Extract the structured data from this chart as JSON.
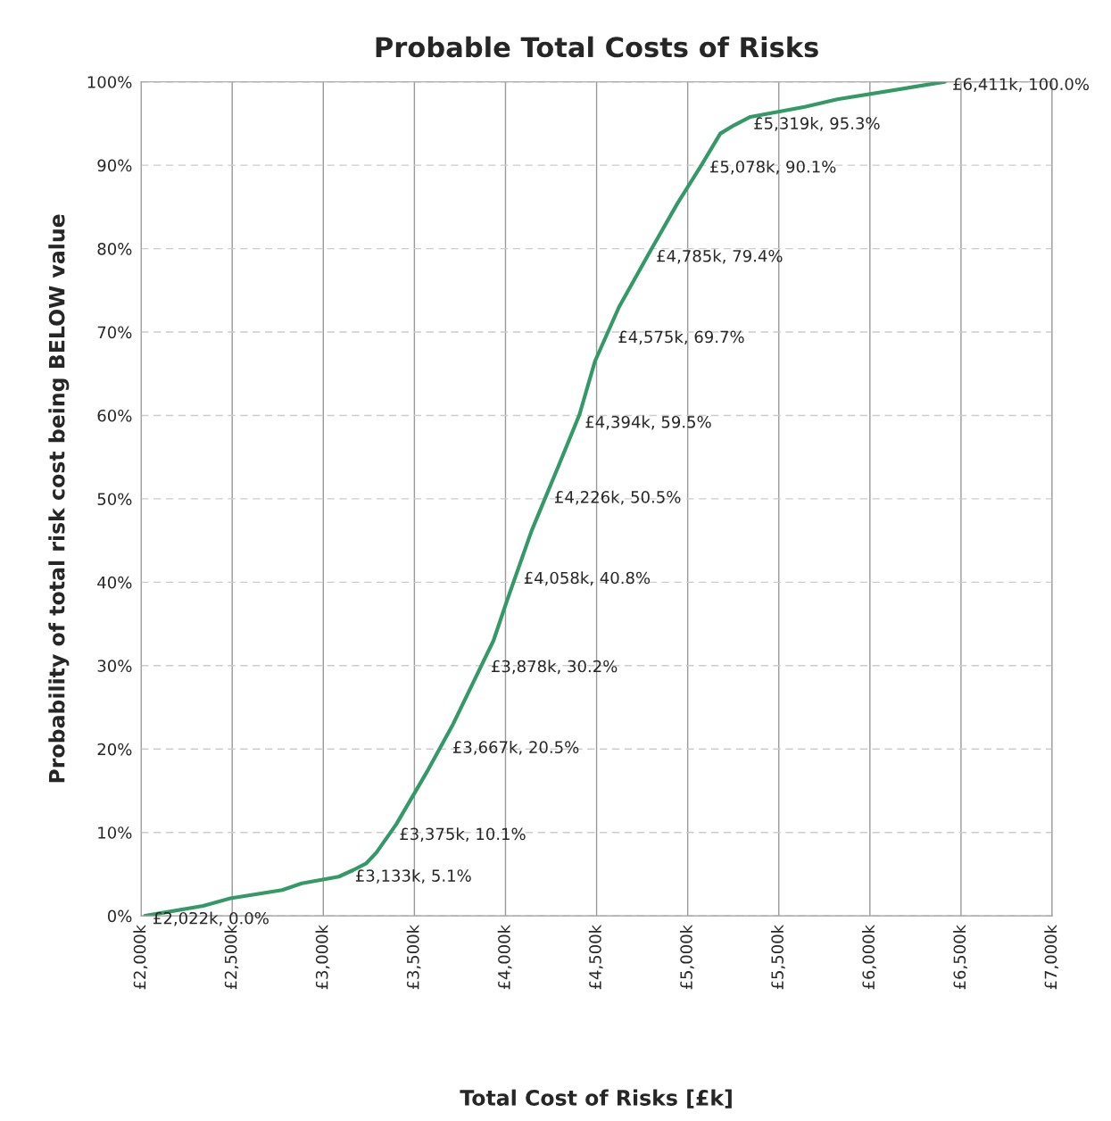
{
  "chart_data": {
    "type": "line",
    "title": "Probable Total Costs of Risks",
    "xlabel": "Total Cost of Risks [£k]",
    "ylabel": "Probability of total risk cost being BELOW value",
    "series": [
      {
        "color": "#339966",
        "x": [
          2022,
          2340,
          2490,
          2774,
          2882,
          3085,
          3165,
          3236,
          3292,
          3401,
          3575,
          3708,
          3830,
          3934,
          4005,
          4142,
          4292,
          4406,
          4491,
          4623,
          4792,
          4943,
          5075,
          5179,
          5255,
          5344,
          5642,
          5821,
          6411
        ],
        "values": [
          0,
          1.2,
          2.1,
          3.1,
          3.9,
          4.7,
          5.5,
          6.3,
          7.6,
          11.0,
          17.5,
          22.8,
          28.3,
          33,
          37.6,
          46.1,
          54,
          60.1,
          66.5,
          73,
          79.6,
          85.4,
          90,
          93.8,
          94.8,
          95.8,
          97,
          97.9,
          100
        ]
      }
    ],
    "annotations": [
      {
        "text": "£2,022k, 0.0%",
        "x": 2022,
        "y": 0
      },
      {
        "text": "£3,133k, 5.1%",
        "x": 3133,
        "y": 5.1
      },
      {
        "text": "£3,375k, 10.1%",
        "x": 3375,
        "y": 10.1
      },
      {
        "text": "£3,667k, 20.5%",
        "x": 3667,
        "y": 20.5
      },
      {
        "text": "£3,878k, 30.2%",
        "x": 3878,
        "y": 30.2
      },
      {
        "text": "£4,058k, 40.8%",
        "x": 4058,
        "y": 40.8
      },
      {
        "text": "£4,226k, 50.5%",
        "x": 4226,
        "y": 50.5
      },
      {
        "text": "£4,394k, 59.5%",
        "x": 4394,
        "y": 59.5
      },
      {
        "text": "£4,575k, 69.7%",
        "x": 4575,
        "y": 69.7
      },
      {
        "text": "£4,785k, 79.4%",
        "x": 4785,
        "y": 79.4
      },
      {
        "text": "£5,078k, 90.1%",
        "x": 5078,
        "y": 90.1
      },
      {
        "text": "£5,319k, 95.3%",
        "x": 5319,
        "y": 95.3
      },
      {
        "text": "£6,411k, 100.0%",
        "x": 6411,
        "y": 100
      }
    ],
    "xlim": [
      2000,
      7000
    ],
    "xticks": [
      {
        "value": 2000,
        "label": "£2,000k"
      },
      {
        "value": 2500,
        "label": "£2,500k"
      },
      {
        "value": 3000,
        "label": "£3,000k"
      },
      {
        "value": 3500,
        "label": "£3,500k"
      },
      {
        "value": 4000,
        "label": "£4,000k"
      },
      {
        "value": 4500,
        "label": "£4,500k"
      },
      {
        "value": 5000,
        "label": "£5,000k"
      },
      {
        "value": 5500,
        "label": "£5,500k"
      },
      {
        "value": 6000,
        "label": "£6,000k"
      },
      {
        "value": 6500,
        "label": "£6,500k"
      },
      {
        "value": 7000,
        "label": "£7,000k"
      }
    ],
    "ylim": [
      0,
      100
    ],
    "yticks": [
      {
        "value": 0,
        "label": "0%"
      },
      {
        "value": 10,
        "label": "10%"
      },
      {
        "value": 20,
        "label": "20%"
      },
      {
        "value": 30,
        "label": "30%"
      },
      {
        "value": 40,
        "label": "40%"
      },
      {
        "value": 50,
        "label": "50%"
      },
      {
        "value": 60,
        "label": "60%"
      },
      {
        "value": 70,
        "label": "70%"
      },
      {
        "value": 80,
        "label": "80%"
      },
      {
        "value": 90,
        "label": "90%"
      },
      {
        "value": 100,
        "label": "100%"
      }
    ],
    "grid": true,
    "marker": "none",
    "line_style": "solid"
  }
}
